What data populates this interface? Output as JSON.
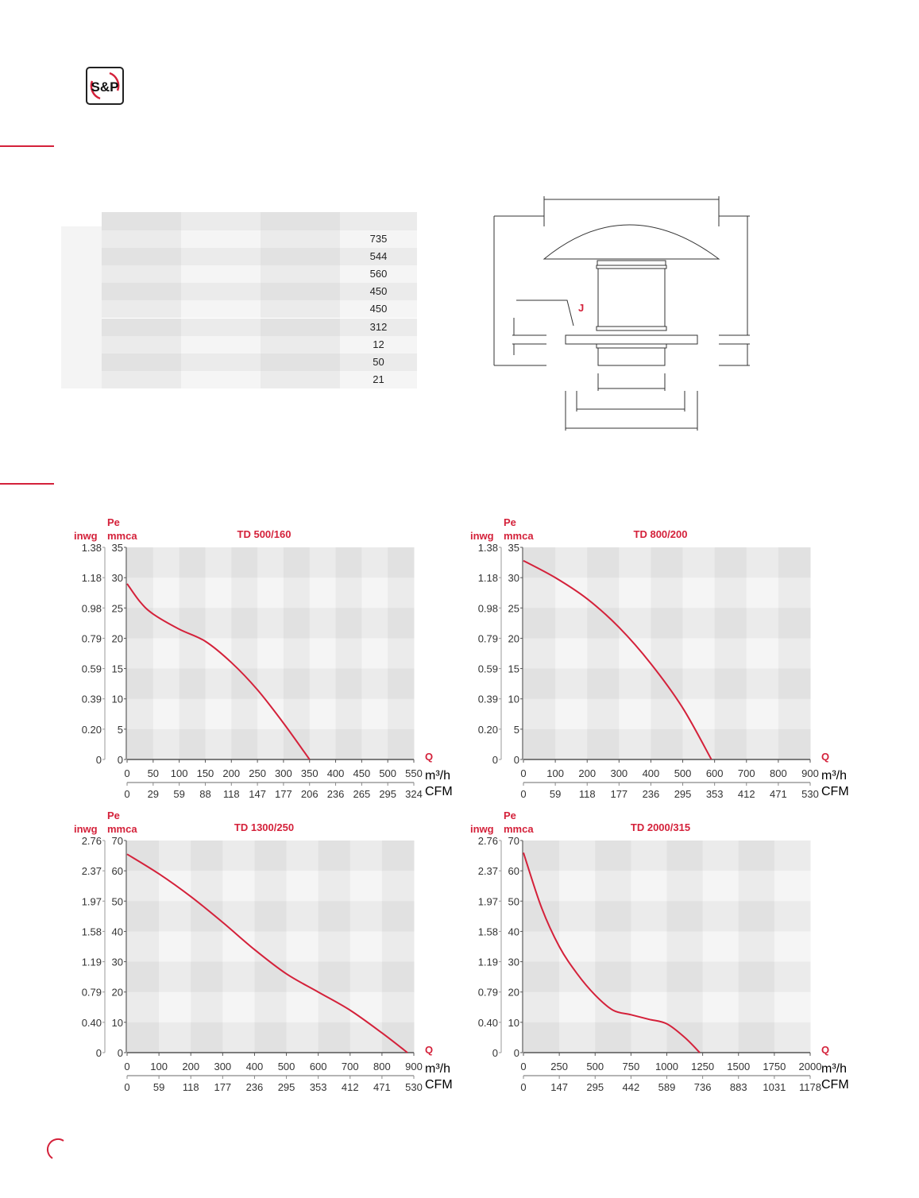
{
  "logo": {
    "text": "S&P",
    "accent": "#d4213a"
  },
  "table": {
    "values": [
      "735",
      "544",
      "560",
      "450",
      "450",
      "312",
      "12",
      "50",
      "21"
    ]
  },
  "diagram": {
    "label_j": "J"
  },
  "colors": {
    "accent": "#d4213a",
    "curve": "#d4213a",
    "grid_light": "#f5f5f5",
    "grid_dark": "#e2e2e2"
  },
  "chart_data": [
    {
      "type": "line",
      "title": "TD 500/160",
      "ylabel": "Pe",
      "ylabel_units": [
        "inwg",
        "mmca"
      ],
      "xlabel": "Q",
      "xlabel_units": [
        "m³/h",
        "CFM"
      ],
      "xlim": [
        0,
        550
      ],
      "ylim": [
        0,
        35
      ],
      "x_ticks": [
        "0",
        "50",
        "100",
        "150",
        "200",
        "250",
        "300",
        "350",
        "400",
        "450",
        "500",
        "550"
      ],
      "x2_ticks": [
        "0",
        "29",
        "59",
        "88",
        "118",
        "147",
        "177",
        "206",
        "236",
        "265",
        "295",
        "324"
      ],
      "y_ticks": [
        "0",
        "5",
        "10",
        "15",
        "20",
        "25",
        "30",
        "35"
      ],
      "y2_ticks": [
        "0",
        "0.20",
        "0.39",
        "0.59",
        "0.79",
        "0.98",
        "1.18",
        "1.38"
      ],
      "grid": true,
      "x": [
        0,
        25,
        50,
        100,
        150,
        200,
        250,
        300,
        350
      ],
      "y": [
        29,
        26,
        24,
        21.5,
        19.5,
        16,
        11.5,
        6,
        0
      ]
    },
    {
      "type": "line",
      "title": "TD 800/200",
      "ylabel": "Pe",
      "ylabel_units": [
        "inwg",
        "mmca"
      ],
      "xlabel": "Q",
      "xlabel_units": [
        "m³/h",
        "CFM"
      ],
      "xlim": [
        0,
        900
      ],
      "ylim": [
        0,
        35
      ],
      "x_ticks": [
        "0",
        "100",
        "200",
        "300",
        "400",
        "500",
        "600",
        "700",
        "800",
        "900"
      ],
      "x2_ticks": [
        "0",
        "59",
        "118",
        "177",
        "236",
        "295",
        "353",
        "412",
        "471",
        "530"
      ],
      "y_ticks": [
        "0",
        "5",
        "10",
        "15",
        "20",
        "25",
        "30",
        "35"
      ],
      "y2_ticks": [
        "0",
        "0.20",
        "0.39",
        "0.59",
        "0.79",
        "0.98",
        "1.18",
        "1.38"
      ],
      "grid": true,
      "x": [
        0,
        100,
        200,
        300,
        400,
        500,
        590
      ],
      "y": [
        32.8,
        30,
        26.5,
        21.8,
        15.8,
        8.5,
        0
      ]
    },
    {
      "type": "line",
      "title": "TD 1300/250",
      "ylabel": "Pe",
      "ylabel_units": [
        "inwg",
        "mmca"
      ],
      "xlabel": "Q",
      "xlabel_units": [
        "m³/h",
        "CFM"
      ],
      "xlim": [
        0,
        900
      ],
      "ylim": [
        0,
        70
      ],
      "x_ticks": [
        "0",
        "100",
        "200",
        "300",
        "400",
        "500",
        "600",
        "700",
        "800",
        "900"
      ],
      "x2_ticks": [
        "0",
        "59",
        "118",
        "177",
        "236",
        "295",
        "353",
        "412",
        "471",
        "530"
      ],
      "y_ticks": [
        "0",
        "10",
        "20",
        "30",
        "40",
        "50",
        "60",
        "70"
      ],
      "y2_ticks": [
        "0",
        "0.40",
        "0.79",
        "1.19",
        "1.58",
        "1.97",
        "2.37",
        "2.76"
      ],
      "grid": true,
      "x": [
        0,
        100,
        200,
        300,
        400,
        500,
        600,
        700,
        800,
        880
      ],
      "y": [
        65.5,
        59,
        51.5,
        43,
        34,
        26,
        20,
        14,
        6.5,
        0
      ]
    },
    {
      "type": "line",
      "title": "TD 2000/315",
      "ylabel": "Pe",
      "ylabel_units": [
        "inwg",
        "mmca"
      ],
      "xlabel": "Q",
      "xlabel_units": [
        "m³/h",
        "CFM"
      ],
      "xlim": [
        0,
        2000
      ],
      "ylim": [
        0,
        70
      ],
      "x_ticks": [
        "0",
        "250",
        "500",
        "750",
        "1000",
        "1250",
        "1500",
        "1750",
        "2000"
      ],
      "x2_ticks": [
        "0",
        "147",
        "295",
        "442",
        "589",
        "736",
        "883",
        "1031",
        "1178"
      ],
      "y_ticks": [
        "0",
        "10",
        "20",
        "30",
        "40",
        "50",
        "60",
        "70"
      ],
      "y2_ticks": [
        "0",
        "0.40",
        "0.79",
        "1.19",
        "1.58",
        "1.97",
        "2.37",
        "2.76"
      ],
      "grid": true,
      "x": [
        0,
        125,
        250,
        375,
        500,
        625,
        750,
        875,
        1000,
        1125,
        1230
      ],
      "y": [
        66,
        48,
        35,
        26,
        19,
        14,
        12.5,
        11,
        9.5,
        5,
        0
      ]
    }
  ]
}
